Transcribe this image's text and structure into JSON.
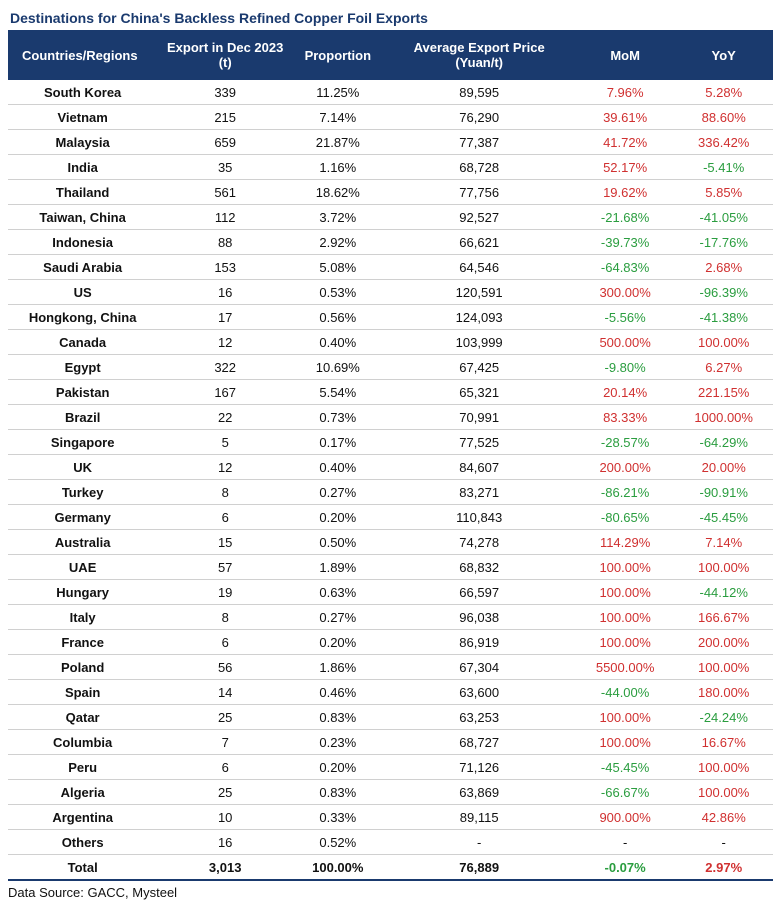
{
  "title": "Destinations for China's Backless Refined Copper Foil Exports",
  "data_source": "Data Source: GACC, Mysteel",
  "colors": {
    "header_bg": "#1a3a6e",
    "header_fg": "#ffffff",
    "title_color": "#1a3a6e",
    "positive": "#d03030",
    "negative": "#2a9d3f",
    "neutral": "#111111",
    "row_border": "#d0d0d0",
    "total_border_bottom": "#1a3a6e"
  },
  "table": {
    "columns": [
      "Countries/Regions",
      "Export in Dec 2023 (t)",
      "Proportion",
      "Average Export Price (Yuan/t)",
      "MoM",
      "YoY"
    ],
    "rows": [
      {
        "country": "South Korea",
        "export": "339",
        "prop": "11.25%",
        "price": "89,595",
        "mom": {
          "v": "7.96%",
          "s": "pos"
        },
        "yoy": {
          "v": "5.28%",
          "s": "pos"
        }
      },
      {
        "country": "Vietnam",
        "export": "215",
        "prop": "7.14%",
        "price": "76,290",
        "mom": {
          "v": "39.61%",
          "s": "pos"
        },
        "yoy": {
          "v": "88.60%",
          "s": "pos"
        }
      },
      {
        "country": "Malaysia",
        "export": "659",
        "prop": "21.87%",
        "price": "77,387",
        "mom": {
          "v": "41.72%",
          "s": "pos"
        },
        "yoy": {
          "v": "336.42%",
          "s": "pos"
        }
      },
      {
        "country": "India",
        "export": "35",
        "prop": "1.16%",
        "price": "68,728",
        "mom": {
          "v": "52.17%",
          "s": "pos"
        },
        "yoy": {
          "v": "-5.41%",
          "s": "neg"
        }
      },
      {
        "country": "Thailand",
        "export": "561",
        "prop": "18.62%",
        "price": "77,756",
        "mom": {
          "v": "19.62%",
          "s": "pos"
        },
        "yoy": {
          "v": "5.85%",
          "s": "pos"
        }
      },
      {
        "country": "Taiwan, China",
        "export": "112",
        "prop": "3.72%",
        "price": "92,527",
        "mom": {
          "v": "-21.68%",
          "s": "neg"
        },
        "yoy": {
          "v": "-41.05%",
          "s": "neg"
        }
      },
      {
        "country": "Indonesia",
        "export": "88",
        "prop": "2.92%",
        "price": "66,621",
        "mom": {
          "v": "-39.73%",
          "s": "neg"
        },
        "yoy": {
          "v": "-17.76%",
          "s": "neg"
        }
      },
      {
        "country": "Saudi Arabia",
        "export": "153",
        "prop": "5.08%",
        "price": "64,546",
        "mom": {
          "v": "-64.83%",
          "s": "neg"
        },
        "yoy": {
          "v": "2.68%",
          "s": "pos"
        }
      },
      {
        "country": "US",
        "export": "16",
        "prop": "0.53%",
        "price": "120,591",
        "mom": {
          "v": "300.00%",
          "s": "pos"
        },
        "yoy": {
          "v": "-96.39%",
          "s": "neg"
        }
      },
      {
        "country": "Hongkong, China",
        "export": "17",
        "prop": "0.56%",
        "price": "124,093",
        "mom": {
          "v": "-5.56%",
          "s": "neg"
        },
        "yoy": {
          "v": "-41.38%",
          "s": "neg"
        }
      },
      {
        "country": "Canada",
        "export": "12",
        "prop": "0.40%",
        "price": "103,999",
        "mom": {
          "v": "500.00%",
          "s": "pos"
        },
        "yoy": {
          "v": "100.00%",
          "s": "pos"
        }
      },
      {
        "country": "Egypt",
        "export": "322",
        "prop": "10.69%",
        "price": "67,425",
        "mom": {
          "v": "-9.80%",
          "s": "neg"
        },
        "yoy": {
          "v": "6.27%",
          "s": "pos"
        }
      },
      {
        "country": "Pakistan",
        "export": "167",
        "prop": "5.54%",
        "price": "65,321",
        "mom": {
          "v": "20.14%",
          "s": "pos"
        },
        "yoy": {
          "v": "221.15%",
          "s": "pos"
        }
      },
      {
        "country": "Brazil",
        "export": "22",
        "prop": "0.73%",
        "price": "70,991",
        "mom": {
          "v": "83.33%",
          "s": "pos"
        },
        "yoy": {
          "v": "1000.00%",
          "s": "pos"
        }
      },
      {
        "country": "Singapore",
        "export": "5",
        "prop": "0.17%",
        "price": "77,525",
        "mom": {
          "v": "-28.57%",
          "s": "neg"
        },
        "yoy": {
          "v": "-64.29%",
          "s": "neg"
        }
      },
      {
        "country": "UK",
        "export": "12",
        "prop": "0.40%",
        "price": "84,607",
        "mom": {
          "v": "200.00%",
          "s": "pos"
        },
        "yoy": {
          "v": "20.00%",
          "s": "pos"
        }
      },
      {
        "country": "Turkey",
        "export": "8",
        "prop": "0.27%",
        "price": "83,271",
        "mom": {
          "v": "-86.21%",
          "s": "neg"
        },
        "yoy": {
          "v": "-90.91%",
          "s": "neg"
        }
      },
      {
        "country": "Germany",
        "export": "6",
        "prop": "0.20%",
        "price": "110,843",
        "mom": {
          "v": "-80.65%",
          "s": "neg"
        },
        "yoy": {
          "v": "-45.45%",
          "s": "neg"
        }
      },
      {
        "country": "Australia",
        "export": "15",
        "prop": "0.50%",
        "price": "74,278",
        "mom": {
          "v": "114.29%",
          "s": "pos"
        },
        "yoy": {
          "v": "7.14%",
          "s": "pos"
        }
      },
      {
        "country": "UAE",
        "export": "57",
        "prop": "1.89%",
        "price": "68,832",
        "mom": {
          "v": "100.00%",
          "s": "pos"
        },
        "yoy": {
          "v": "100.00%",
          "s": "pos"
        }
      },
      {
        "country": "Hungary",
        "export": "19",
        "prop": "0.63%",
        "price": "66,597",
        "mom": {
          "v": "100.00%",
          "s": "pos"
        },
        "yoy": {
          "v": "-44.12%",
          "s": "neg"
        }
      },
      {
        "country": "Italy",
        "export": "8",
        "prop": "0.27%",
        "price": "96,038",
        "mom": {
          "v": "100.00%",
          "s": "pos"
        },
        "yoy": {
          "v": "166.67%",
          "s": "pos"
        }
      },
      {
        "country": "France",
        "export": "6",
        "prop": "0.20%",
        "price": "86,919",
        "mom": {
          "v": "100.00%",
          "s": "pos"
        },
        "yoy": {
          "v": "200.00%",
          "s": "pos"
        }
      },
      {
        "country": "Poland",
        "export": "56",
        "prop": "1.86%",
        "price": "67,304",
        "mom": {
          "v": "5500.00%",
          "s": "pos"
        },
        "yoy": {
          "v": "100.00%",
          "s": "pos"
        }
      },
      {
        "country": "Spain",
        "export": "14",
        "prop": "0.46%",
        "price": "63,600",
        "mom": {
          "v": "-44.00%",
          "s": "neg"
        },
        "yoy": {
          "v": "180.00%",
          "s": "pos"
        }
      },
      {
        "country": "Qatar",
        "export": "25",
        "prop": "0.83%",
        "price": "63,253",
        "mom": {
          "v": "100.00%",
          "s": "pos"
        },
        "yoy": {
          "v": "-24.24%",
          "s": "neg"
        }
      },
      {
        "country": "Columbia",
        "export": "7",
        "prop": "0.23%",
        "price": "68,727",
        "mom": {
          "v": "100.00%",
          "s": "pos"
        },
        "yoy": {
          "v": "16.67%",
          "s": "pos"
        }
      },
      {
        "country": "Peru",
        "export": "6",
        "prop": "0.20%",
        "price": "71,126",
        "mom": {
          "v": "-45.45%",
          "s": "neg"
        },
        "yoy": {
          "v": "100.00%",
          "s": "pos"
        }
      },
      {
        "country": "Algeria",
        "export": "25",
        "prop": "0.83%",
        "price": "63,869",
        "mom": {
          "v": "-66.67%",
          "s": "neg"
        },
        "yoy": {
          "v": "100.00%",
          "s": "pos"
        }
      },
      {
        "country": "Argentina",
        "export": "10",
        "prop": "0.33%",
        "price": "89,115",
        "mom": {
          "v": "900.00%",
          "s": "pos"
        },
        "yoy": {
          "v": "42.86%",
          "s": "pos"
        }
      },
      {
        "country": "Others",
        "export": "16",
        "prop": "0.52%",
        "price": "-",
        "mom": {
          "v": "-",
          "s": "neutral"
        },
        "yoy": {
          "v": "-",
          "s": "neutral"
        }
      }
    ],
    "total": {
      "country": "Total",
      "export": "3,013",
      "prop": "100.00%",
      "price": "76,889",
      "mom": {
        "v": "-0.07%",
        "s": "neg"
      },
      "yoy": {
        "v": "2.97%",
        "s": "pos"
      }
    }
  }
}
